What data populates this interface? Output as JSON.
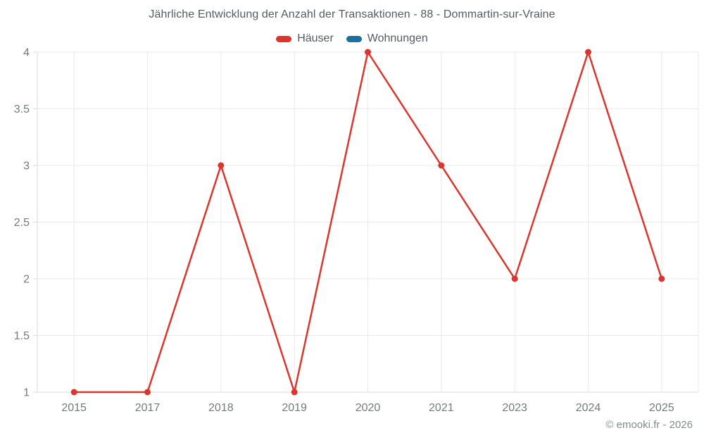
{
  "header": {
    "title": "Jährliche Entwicklung der Anzahl der Transaktionen - 88 - Dommartin-sur-Vraine"
  },
  "chart_data": {
    "type": "line",
    "title": "Jährliche Entwicklung der Anzahl der Transaktionen - 88 - Dommartin-sur-Vraine",
    "categories": [
      "2015",
      "2017",
      "2018",
      "2019",
      "2020",
      "2021",
      "2023",
      "2024",
      "2025"
    ],
    "series": [
      {
        "name": "Häuser",
        "color": "#db362d",
        "values": [
          1,
          1,
          3,
          1,
          4,
          3,
          2,
          4,
          2
        ]
      },
      {
        "name": "Wohnungen",
        "color": "#1a6fa3",
        "values": []
      }
    ],
    "xlabel": "",
    "ylabel": "",
    "ylim": [
      1,
      4
    ],
    "yticks": [
      1,
      1.5,
      2,
      2.5,
      3,
      3.5,
      4
    ],
    "ytick_labels": [
      "1",
      "1.5",
      "2",
      "2.5",
      "3",
      "3.5",
      "4"
    ],
    "grid": true,
    "legend_position": "top"
  },
  "legend": {
    "items": [
      {
        "label": "Häuser",
        "color": "#db362d"
      },
      {
        "label": "Wohnungen",
        "color": "#1a6fa3"
      }
    ]
  },
  "footer": {
    "credit": "© emooki.fr - 2026"
  },
  "colors": {
    "background": "#ffffff",
    "gridline": "#e9e9e9",
    "axis_border": "#dbdbdb",
    "tick_text": "#75797e",
    "title_text": "#565b61",
    "footer_text": "#85898d",
    "hauser_red": "#db362d",
    "wohnungen_blue": "#1a6fa3"
  }
}
